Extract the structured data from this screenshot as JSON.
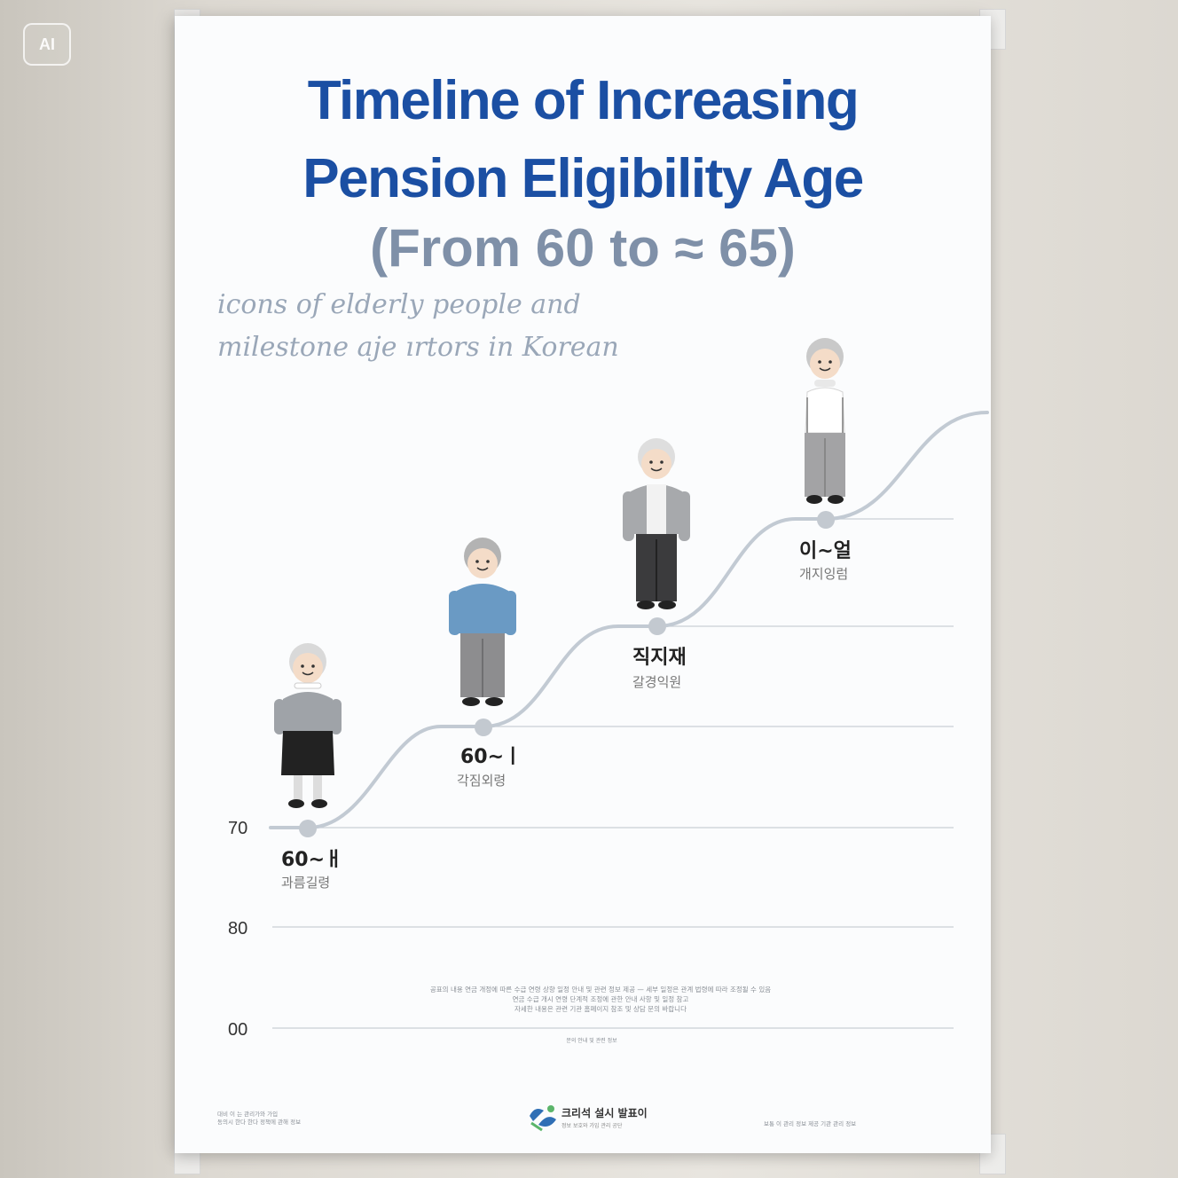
{
  "badge": "AI",
  "poster": {
    "title_line1": "Timeline of Increasing",
    "title_line2": "Pension Eligibility Age",
    "subtitle": "(From 60 to ≈ 65)",
    "note_line1": "icons of elderly people and",
    "note_line2": "milestone aje ırtors in Korean"
  },
  "chart_data": {
    "type": "line",
    "title": "Timeline of Increasing Pension Eligibility Age",
    "y_tick_labels": [
      "70",
      "80",
      "00"
    ],
    "milestones": [
      {
        "label": "60~ㅐ",
        "sublabel": "과름길령"
      },
      {
        "label": "60~ㅣ",
        "sublabel": "각짐외령"
      },
      {
        "label": "직지재",
        "sublabel": "갈경익원"
      },
      {
        "label": "이~얼",
        "sublabel": "개지잉럼"
      }
    ],
    "figure_colors": {
      "figure1_top": "#9fa3a8",
      "figure1_skirt": "#222222",
      "figure2_top": "#6a9ac4",
      "figure3_jacket": "#a7a9ac",
      "figure4_top": "#ffffff"
    }
  },
  "footer": {
    "left_line1": "대비 이 는 관리가와 가입",
    "left_line2": "동의시 한다 한다 정책에 관해 정보",
    "org_name": "크리석 설시 발표이",
    "org_sub": "정보 보호와 가입 관리 공단",
    "right_line": "보통 이 관리 정보 제공  기관 관리  정보"
  },
  "fine_print": {
    "line1": "공표의 내용 연금 개정에 따른 수급 연령 상향 일정 안내 및 관련 정보 제공 — 세부 일정은 관계 법령에 따라 조정될 수 있음",
    "line2": "연금 수급 개시 연령 단계적 조정에 관한 안내 사항 및 일정 참고",
    "line3": "자세한 내용은 관련 기관 홈페이지 참조 및 상담 문의 바랍니다",
    "line4": "문의 안내 및 관련 정보"
  }
}
